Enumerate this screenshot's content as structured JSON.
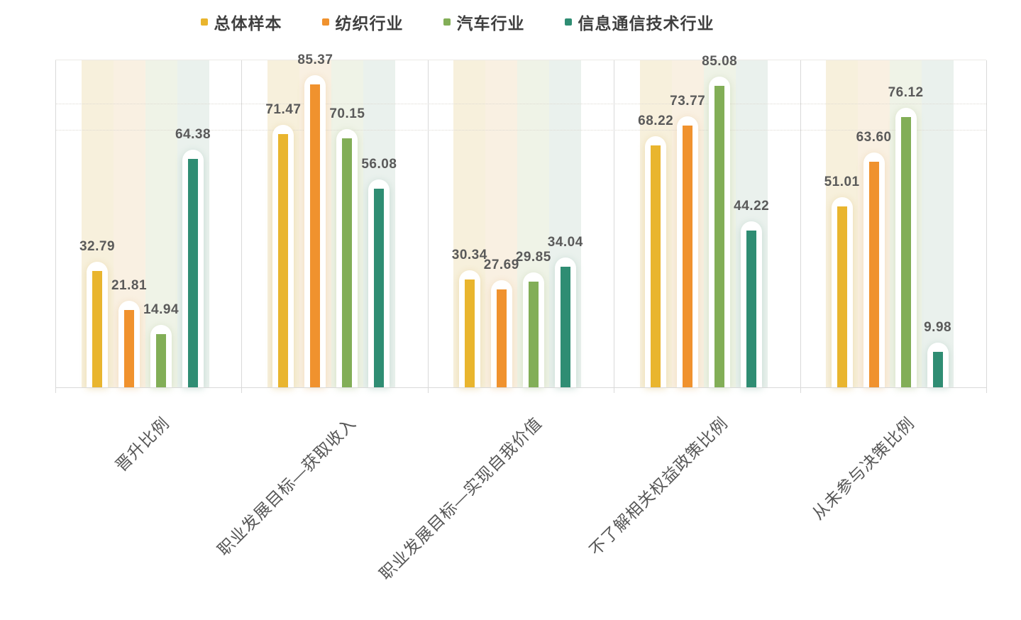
{
  "chart_data": {
    "type": "bar",
    "title": "",
    "xlabel": "",
    "ylabel": "",
    "ylim": [
      0,
      92
    ],
    "legend_position": "top",
    "grid": "two faint dotted horizontal gridlines near the top of the plot",
    "value_labels": "each bar labeled with its value, two decimals",
    "axis_line_color": "#D9D9D9",
    "value_label_color": "#5A5A5A",
    "category_label_color": "#575757",
    "legend_text_color": "#3F3F3F",
    "categories": [
      "晋升比例",
      "职业发展目标—获取收入",
      "职业发展目标—实现自我价值",
      "不了解相关权益政策比例",
      "从未参与决策比例"
    ],
    "series": [
      {
        "name": "总体样本",
        "color": "#E9B52E",
        "tint": "#F7F0DC",
        "glow": "rgba(222,196,120,0.45)",
        "values": [
          32.79,
          71.47,
          30.34,
          68.22,
          51.01
        ]
      },
      {
        "name": "纺织行业",
        "color": "#F0922E",
        "tint": "#F9F0E2",
        "glow": "rgba(233,196,140,0.45)",
        "values": [
          21.81,
          85.37,
          27.69,
          73.77,
          63.6
        ]
      },
      {
        "name": "汽车行业",
        "color": "#82AE57",
        "tint": "#EFF3E7",
        "glow": "rgba(180,200,150,0.45)",
        "values": [
          14.94,
          70.15,
          29.85,
          85.08,
          76.12
        ]
      },
      {
        "name": "信息通信技术行业",
        "color": "#2F8D73",
        "tint": "#EAF1ED",
        "glow": "rgba(150,190,175,0.45)",
        "values": [
          64.38,
          56.08,
          34.04,
          44.22,
          9.98
        ]
      }
    ]
  }
}
